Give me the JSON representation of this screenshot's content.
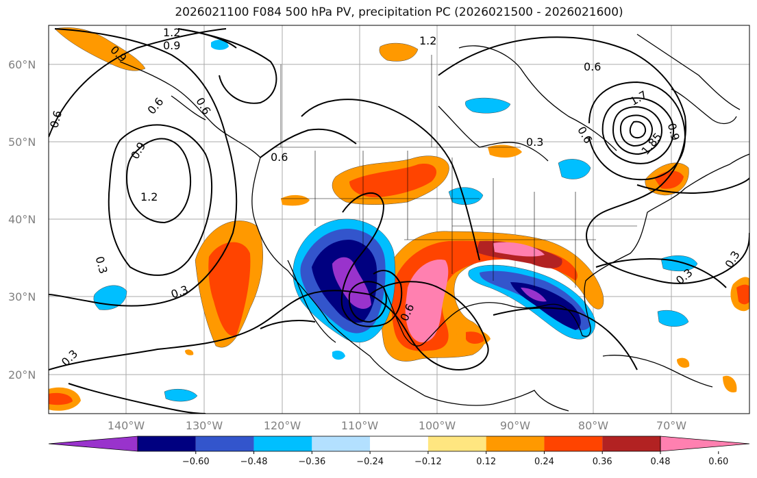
{
  "title": "2026021100 F084 500 hPa PV, precipitation PC (2026021500 - 2026021600)",
  "lat_labels": [
    "60°N",
    "50°N",
    "40°N",
    "30°N",
    "20°N"
  ],
  "lon_labels": [
    "140°W",
    "130°W",
    "120°W",
    "110°W",
    "100°W",
    "90°W",
    "80°W",
    "70°W"
  ],
  "colorbar": {
    "ticks": [
      "−0.60",
      "−0.48",
      "−0.36",
      "−0.24",
      "−0.12",
      "0.12",
      "0.24",
      "0.36",
      "0.48",
      "0.60"
    ],
    "colors": [
      "#9933cc",
      "#000080",
      "#3355cc",
      "#00bfff",
      "#b3e0ff",
      "#ffffff",
      "#ffe680",
      "#ff9900",
      "#ff4400",
      "#b22222",
      "#ff80b0"
    ]
  },
  "contour_labels": [
    "1.2",
    "0.9",
    "0.6",
    "0.3",
    "1.2",
    "0.9",
    "0.6",
    "0.3",
    "0.6",
    "1.2",
    "0.9",
    "0.6",
    "0.3",
    "0.6",
    "0.3",
    "0.6",
    "0.3",
    "0.3",
    "1.7",
    "0.9",
    "0.6",
    "1.85"
  ]
}
